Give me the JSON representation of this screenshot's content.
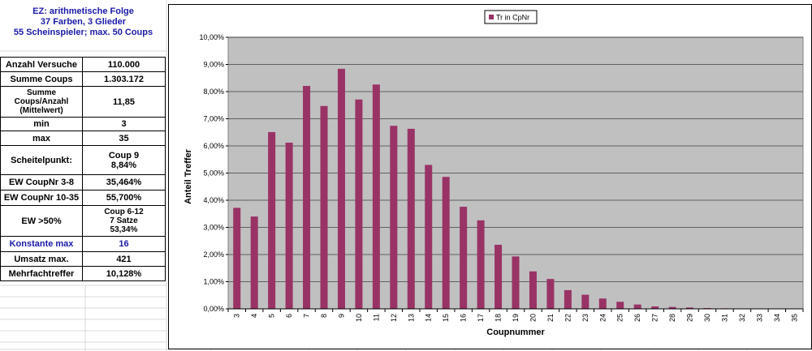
{
  "header": {
    "line1": "EZ: arithmetische Folge",
    "line2": "37 Farben, 3 Glieder",
    "line3": "55 Scheinspieler; max. 50 Coups"
  },
  "stats": [
    {
      "label": "Anzahl Versuche",
      "value": "110.000"
    },
    {
      "label": "Summe Coups",
      "value": "1.303.172"
    },
    {
      "label": "Summe Coups/Anzahl (Mittelwert)",
      "value": "11,85"
    },
    {
      "label": "min",
      "value": "3"
    },
    {
      "label": "max",
      "value": "35"
    },
    {
      "label": "Scheitelpunkt:",
      "value": "Coup 9",
      "value2": "8,84%"
    },
    {
      "label": "EW CoupNr 3-8",
      "value": "35,464%"
    },
    {
      "label": "EW CoupNr 10-35",
      "value": "55,700%"
    },
    {
      "label": "EW >50%",
      "value": "Coup 6-12",
      "value2": "7 Satze",
      "value3": "53,34%"
    },
    {
      "label": "Konstante max",
      "value": "16"
    },
    {
      "label": "Umsatz max.",
      "value": "421"
    },
    {
      "label": "Mehrfachtreffer",
      "value": "10,128%"
    }
  ],
  "colors": {
    "bar": "#993366",
    "plot_bg": "#c0c0c0",
    "frame_bg": "#ffffff",
    "header_blue": "#1a1aa8"
  },
  "chart_data": {
    "type": "bar",
    "title": "",
    "xlabel": "Coupnummer",
    "ylabel": "Anteil Treffer",
    "ylim": [
      0,
      10
    ],
    "yticks": [
      "0,00%",
      "1,00%",
      "2,00%",
      "3,00%",
      "4,00%",
      "5,00%",
      "6,00%",
      "7,00%",
      "8,00%",
      "9,00%",
      "10,00%"
    ],
    "legend_position": "top-center",
    "grid": true,
    "categories": [
      "3",
      "4",
      "5",
      "6",
      "7",
      "8",
      "9",
      "10",
      "11",
      "12",
      "13",
      "14",
      "15",
      "16",
      "17",
      "18",
      "19",
      "20",
      "21",
      "22",
      "23",
      "24",
      "25",
      "26",
      "27",
      "28",
      "29",
      "30",
      "31",
      "32",
      "33",
      "34",
      "35"
    ],
    "series": [
      {
        "name": "Tr in CpNr",
        "values": [
          3.72,
          3.4,
          6.51,
          6.12,
          8.21,
          7.47,
          8.84,
          7.71,
          8.26,
          6.74,
          6.63,
          5.3,
          4.86,
          3.76,
          3.26,
          2.36,
          1.93,
          1.38,
          1.1,
          0.69,
          0.52,
          0.38,
          0.26,
          0.16,
          0.09,
          0.07,
          0.05,
          0.03,
          0.02,
          0.01,
          0.01,
          0.005,
          0.005
        ]
      }
    ]
  }
}
